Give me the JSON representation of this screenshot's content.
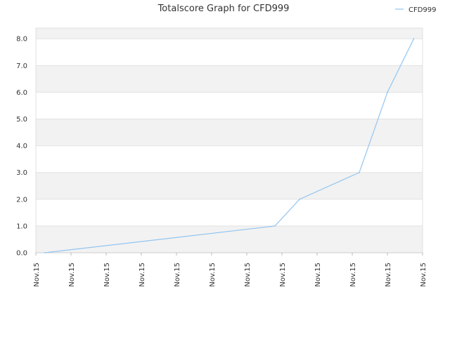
{
  "chart_data": {
    "type": "line",
    "title": "Totalscore Graph for CFD999",
    "xlabel": "",
    "ylabel": "",
    "ylim": [
      0,
      8.4
    ],
    "yticks": [
      "0.0",
      "1.0",
      "2.0",
      "3.0",
      "4.0",
      "5.0",
      "6.0",
      "7.0",
      "8.0"
    ],
    "xticks": [
      "Nov.15",
      "Nov.15",
      "Nov.15",
      "Nov.15",
      "Nov.15",
      "Nov.15",
      "Nov.15",
      "Nov.15",
      "Nov.15",
      "Nov.15",
      "Nov.15",
      "Nov.15"
    ],
    "grid": true,
    "legend_position": "top-right",
    "series": [
      {
        "name": "CFD999",
        "color": "#92c5f0",
        "x": [
          0.25,
          6.8,
          7.5,
          9.2,
          10.0,
          10.75
        ],
        "y": [
          0,
          1.0,
          2.0,
          3.0,
          6.0,
          8.0
        ]
      }
    ]
  }
}
